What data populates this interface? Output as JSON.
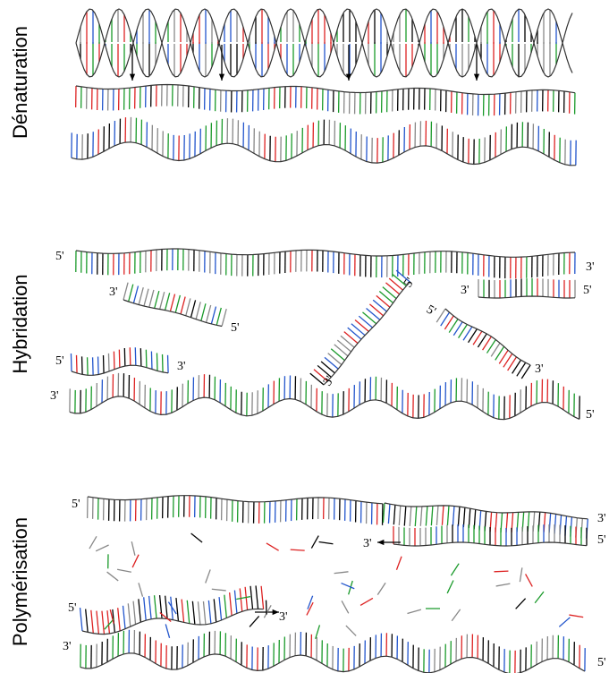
{
  "steps": [
    {
      "label": "Dénaturation"
    },
    {
      "label": "Hybridation",
      "ends": [
        "5'",
        "3'",
        "3'",
        "5'",
        "5'",
        "3'",
        "3'",
        "5'",
        "5'",
        "3'",
        "5'",
        "3'",
        "3'",
        "5'"
      ]
    },
    {
      "label": "Polymérisation",
      "ends": [
        "5'",
        "3'",
        "3'",
        "5'",
        "5'",
        "3'",
        "3'",
        "5'"
      ]
    }
  ]
}
